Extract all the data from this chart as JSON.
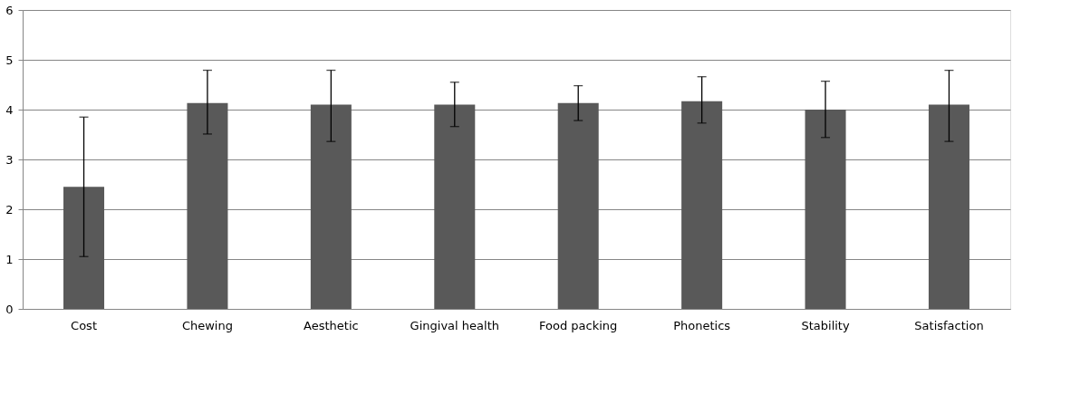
{
  "chart_data": {
    "type": "bar",
    "categories": [
      "Cost",
      "Chewing",
      "Aesthetic",
      "Gingival health",
      "Food packing",
      "Phonetics",
      "Stability",
      "Satisfaction"
    ],
    "values": [
      2.45,
      4.13,
      4.1,
      4.1,
      4.13,
      4.17,
      4.0,
      4.1
    ],
    "errors": [
      [
        1.05,
        3.85
      ],
      [
        3.51,
        4.79
      ],
      [
        3.36,
        4.79
      ],
      [
        3.66,
        4.55
      ],
      [
        3.78,
        4.48
      ],
      [
        3.73,
        4.66
      ],
      [
        3.44,
        4.57
      ],
      [
        3.36,
        4.79
      ]
    ],
    "color": "#595959",
    "ylim": [
      0,
      6
    ],
    "yticks": [
      0,
      1,
      2,
      3,
      4,
      5,
      6
    ],
    "grid": "y"
  }
}
